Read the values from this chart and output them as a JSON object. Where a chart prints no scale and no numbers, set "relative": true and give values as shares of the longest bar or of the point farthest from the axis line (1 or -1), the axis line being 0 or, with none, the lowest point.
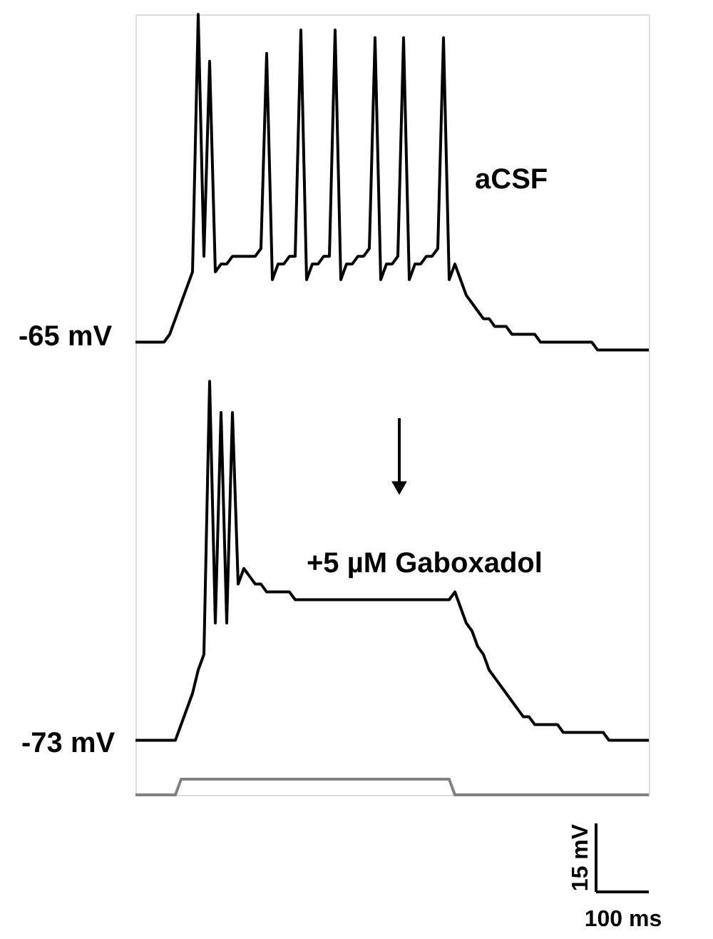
{
  "chart_data": {
    "type": "line",
    "relative": true,
    "categories": [
      null,
      null,
      null,
      null,
      null,
      null,
      null,
      null,
      null,
      null,
      null,
      null,
      null,
      null,
      null,
      null,
      null,
      null,
      null,
      null,
      null,
      null,
      null,
      null,
      null,
      null,
      null,
      null,
      null,
      null,
      null,
      null,
      null,
      null,
      null,
      null,
      null,
      null,
      null,
      null,
      null,
      null,
      null,
      null,
      null,
      null,
      null,
      null,
      null,
      null,
      null,
      null,
      null,
      null,
      null,
      null,
      null,
      null,
      null,
      null,
      null,
      null,
      null,
      null,
      null,
      null,
      null,
      null,
      null,
      null,
      null,
      null,
      null,
      null,
      null,
      null,
      null,
      null,
      null,
      null,
      null,
      null,
      null,
      null,
      null,
      null,
      null,
      null,
      null,
      null,
      null
    ],
    "annotations": [
      "aCSF",
      "-65 mV",
      "+5 µM Gaboxadol",
      "-73 mV",
      "15 mV",
      "100 ms"
    ],
    "series": [
      {
        "color": "#000000",
        "values": [
          0.58,
          0.58,
          0.58,
          0.58,
          0.58,
          0.58,
          0.59,
          0.61,
          0.63,
          0.65,
          0.67,
          1.0,
          0.69,
          0.94,
          0.67,
          0.68,
          0.68,
          0.69,
          0.69,
          0.69,
          0.69,
          0.69,
          0.7,
          0.95,
          0.66,
          0.68,
          0.68,
          0.69,
          0.69,
          0.98,
          0.66,
          0.68,
          0.68,
          0.69,
          0.69,
          0.98,
          0.66,
          0.68,
          0.68,
          0.69,
          0.69,
          0.7,
          0.97,
          0.66,
          0.68,
          0.68,
          0.69,
          0.97,
          0.66,
          0.68,
          0.68,
          0.69,
          0.69,
          0.7,
          0.97,
          0.66,
          0.68,
          0.66,
          0.64,
          0.63,
          0.62,
          0.61,
          0.61,
          0.6,
          0.6,
          0.6,
          0.59,
          0.59,
          0.59,
          0.59,
          0.59,
          0.58,
          0.58,
          0.58,
          0.58,
          0.58,
          0.58,
          0.58,
          0.58,
          0.58,
          0.58,
          0.57,
          0.57,
          0.57,
          0.57,
          0.57,
          0.57,
          0.57,
          0.57,
          0.57,
          0.57
        ]
      },
      {
        "color": "#000000",
        "values": [
          0.07,
          0.07,
          0.07,
          0.07,
          0.07,
          0.07,
          0.07,
          0.07,
          0.09,
          0.11,
          0.13,
          0.16,
          0.18,
          0.53,
          0.22,
          0.49,
          0.22,
          0.49,
          0.27,
          0.29,
          0.28,
          0.27,
          0.27,
          0.26,
          0.26,
          0.26,
          0.26,
          0.26,
          0.25,
          0.25,
          0.25,
          0.25,
          0.25,
          0.25,
          0.25,
          0.25,
          0.25,
          0.25,
          0.25,
          0.25,
          0.25,
          0.25,
          0.25,
          0.25,
          0.25,
          0.25,
          0.25,
          0.25,
          0.25,
          0.25,
          0.25,
          0.25,
          0.25,
          0.25,
          0.25,
          0.25,
          0.26,
          0.24,
          0.22,
          0.21,
          0.19,
          0.18,
          0.16,
          0.15,
          0.14,
          0.13,
          0.12,
          0.11,
          0.1,
          0.1,
          0.09,
          0.09,
          0.09,
          0.09,
          0.09,
          0.08,
          0.08,
          0.08,
          0.08,
          0.08,
          0.08,
          0.08,
          0.08,
          0.07,
          0.07,
          0.07,
          0.07,
          0.07,
          0.07,
          0.07,
          0.07
        ]
      },
      {
        "color": "#808080",
        "values": [
          0,
          0,
          0,
          0,
          0,
          0,
          0,
          0,
          0.02,
          0.02,
          0.02,
          0.02,
          0.02,
          0.02,
          0.02,
          0.02,
          0.02,
          0.02,
          0.02,
          0.02,
          0.02,
          0.02,
          0.02,
          0.02,
          0.02,
          0.02,
          0.02,
          0.02,
          0.02,
          0.02,
          0.02,
          0.02,
          0.02,
          0.02,
          0.02,
          0.02,
          0.02,
          0.02,
          0.02,
          0.02,
          0.02,
          0.02,
          0.02,
          0.02,
          0.02,
          0.02,
          0.02,
          0.02,
          0.02,
          0.02,
          0.02,
          0.02,
          0.02,
          0.02,
          0.02,
          0.02,
          0,
          0,
          0,
          0,
          0,
          0,
          0,
          0,
          0,
          0,
          0,
          0,
          0,
          0,
          0,
          0,
          0,
          0,
          0,
          0,
          0,
          0,
          0,
          0,
          0,
          0,
          0,
          0,
          0,
          0,
          0,
          0,
          0,
          0,
          0
        ]
      }
    ]
  }
}
